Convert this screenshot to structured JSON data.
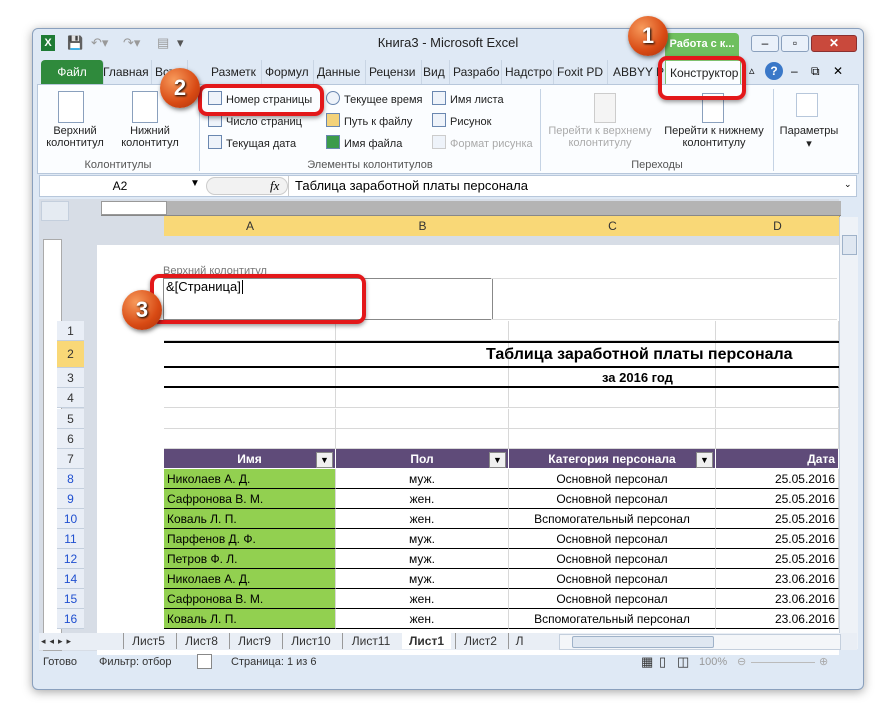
{
  "window": {
    "title": "Книга3  -  Microsoft Excel"
  },
  "quick_access": [
    "excel-icon",
    "save-icon",
    "undo-icon",
    "redo-icon",
    "form-icon",
    "customize-icon"
  ],
  "contextual_tab_group": "Работа с к...",
  "tabs": [
    "Файл",
    "Главная",
    "Вставка",
    "Разметк",
    "Формул",
    "Данные",
    "Рецензи",
    "Вид",
    "Разрабо",
    "Надстро",
    "Foxit PD",
    "ABBYY P",
    "Конструктор"
  ],
  "ribbon": {
    "header_footer": {
      "header": "Верхний колонтитул",
      "footer": "Нижний колонтитул",
      "group": "Колонтитулы"
    },
    "elements": {
      "items": [
        "Номер страницы",
        "Текущее время",
        "Имя листа",
        "Число страниц",
        "Путь к файлу",
        "Рисунок",
        "Текущая дата",
        "Имя файла",
        "Формат рисунка"
      ],
      "group": "Элементы колонтитулов"
    },
    "navigation": {
      "to_header": "Перейти к верхнему колонтитулу",
      "to_footer": "Перейти к нижнему колонтитулу",
      "group": "Переходы"
    },
    "options": "Параметры"
  },
  "formula_bar": {
    "name_box": "A2",
    "fx": "fx",
    "formula": "Таблица заработной платы персонала"
  },
  "columns": [
    "A",
    "B",
    "C",
    "D"
  ],
  "page": {
    "header_label": "Верхний колонтитул",
    "header_value": "&[Страница]"
  },
  "sheet": {
    "title": "Таблица заработной платы персонала",
    "subtitle": "за 2016 год",
    "headers": [
      "Имя",
      "Пол",
      "Категория персонала",
      "Дата"
    ],
    "rows": [
      {
        "row": "8",
        "name": "Николаев А. Д.",
        "sex": "муж.",
        "cat": "Основной персонал",
        "date": "25.05.2016"
      },
      {
        "row": "9",
        "name": "Сафронова В. М.",
        "sex": "жен.",
        "cat": "Основной персонал",
        "date": "25.05.2016"
      },
      {
        "row": "10",
        "name": "Коваль Л. П.",
        "sex": "жен.",
        "cat": "Вспомогательный персонал",
        "date": "25.05.2016"
      },
      {
        "row": "11",
        "name": "Парфенов Д. Ф.",
        "sex": "муж.",
        "cat": "Основной персонал",
        "date": "25.05.2016"
      },
      {
        "row": "12",
        "name": "Петров Ф. Л.",
        "sex": "муж.",
        "cat": "Основной персонал",
        "date": "25.05.2016"
      },
      {
        "row": "14",
        "name": "Николаев А. Д.",
        "sex": "муж.",
        "cat": "Основной персонал",
        "date": "23.06.2016"
      },
      {
        "row": "15",
        "name": "Сафронова В. М.",
        "sex": "жен.",
        "cat": "Основной персонал",
        "date": "23.06.2016"
      },
      {
        "row": "16",
        "name": "Коваль Л. П.",
        "sex": "жен.",
        "cat": "Вспомогательный персонал",
        "date": "23.06.2016"
      }
    ],
    "top_rows": [
      "1",
      "2",
      "3",
      "4",
      "5",
      "6",
      "7"
    ]
  },
  "sheet_tabs": [
    "Лист5",
    "Лист8",
    "Лист9",
    "Лист10",
    "Лист11",
    "Лист1",
    "Лист2",
    "Л"
  ],
  "active_sheet": "Лист1",
  "status": {
    "ready": "Готово",
    "filter": "Фильтр: отбор",
    "page": "Страница: 1 из 6",
    "zoom": "100%"
  },
  "callouts": [
    "1",
    "2",
    "3"
  ],
  "colors": {
    "header_fill": "#5f4b79",
    "name_fill": "#92d050",
    "file_tab": "#2f8a3c",
    "callout": "#e3181a"
  }
}
